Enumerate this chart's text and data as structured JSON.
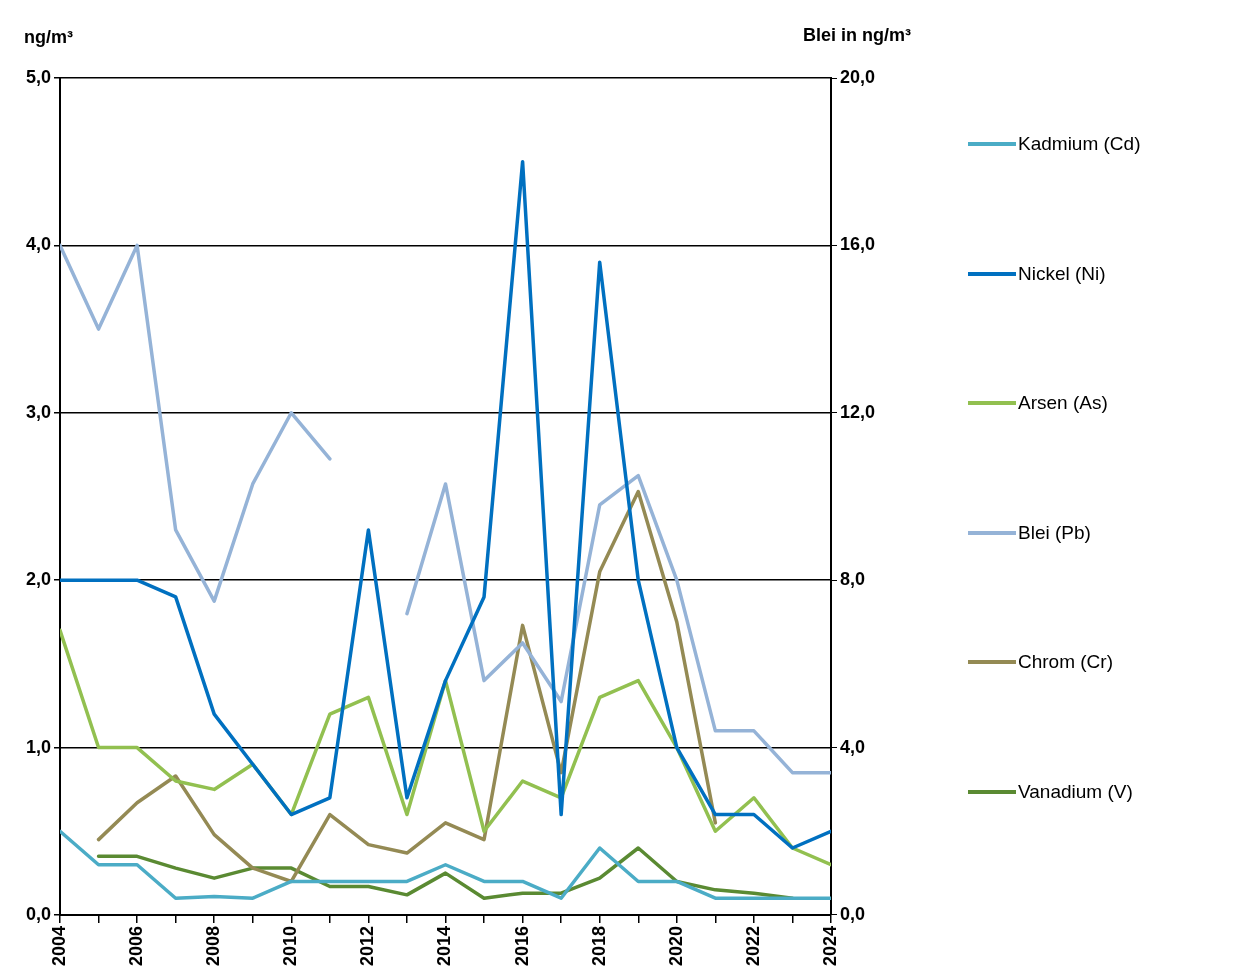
{
  "chart_data": {
    "type": "line",
    "ylabel": "ng/m³",
    "y2label": "Blei in ng/m³",
    "x": [
      2004,
      2005,
      2006,
      2007,
      2008,
      2009,
      2010,
      2011,
      2012,
      2013,
      2014,
      2015,
      2016,
      2017,
      2018,
      2019,
      2020,
      2021,
      2022,
      2023,
      2024
    ],
    "xlim": [
      2004,
      2024
    ],
    "xticks": [
      2004,
      {
        "value": 2005,
        "label": null
      },
      2006,
      {
        "value": 2007,
        "label": null
      },
      2008,
      {
        "value": 2009,
        "label": null
      },
      2010,
      {
        "value": 2011,
        "label": null
      },
      2012,
      {
        "value": 2013,
        "label": null
      },
      2014,
      {
        "value": 2015,
        "label": null
      },
      2016,
      {
        "value": 2017,
        "label": null
      },
      2018,
      {
        "value": 2019,
        "label": null
      },
      2020,
      {
        "value": 2021,
        "label": null
      },
      2022,
      {
        "value": 2023,
        "label": null
      },
      2024
    ],
    "ylim": [
      0,
      5
    ],
    "yticks": [
      {
        "value": 0,
        "label": "0,0"
      },
      {
        "value": 1,
        "label": "1,0"
      },
      {
        "value": 2,
        "label": "2,0"
      },
      {
        "value": 3,
        "label": "3,0"
      },
      {
        "value": 4,
        "label": "4,0"
      },
      {
        "value": 5,
        "label": "5,0"
      }
    ],
    "y2lim": [
      0,
      20
    ],
    "y2ticks": [
      {
        "value": 0,
        "label": "0,0"
      },
      {
        "value": 4,
        "label": "4,0"
      },
      {
        "value": 8,
        "label": "8,0"
      },
      {
        "value": 12,
        "label": "12,0"
      },
      {
        "value": 16,
        "label": "16,0"
      },
      {
        "value": 20,
        "label": "20,0"
      }
    ],
    "grid": "y",
    "legend": "right",
    "marker": "none",
    "line_style": "solid",
    "series": [
      {
        "name": "Kadmium (Cd)",
        "color": "#4bacc6",
        "values": [
          0.5,
          0.3,
          0.3,
          0.1,
          0.11,
          0.1,
          0.2,
          0.2,
          0.2,
          0.2,
          0.3,
          0.2,
          0.2,
          0.1,
          0.4,
          0.2,
          0.2,
          0.1,
          0.1,
          0.1,
          0.1
        ]
      },
      {
        "name": "Nickel (Ni)",
        "color": "#0070c0",
        "values": [
          2.0,
          2.0,
          2.0,
          1.9,
          1.2,
          0.9,
          0.6,
          0.7,
          2.3,
          0.7,
          1.4,
          1.9,
          4.5,
          0.6,
          3.9,
          2.0,
          1.0,
          0.6,
          0.6,
          0.4,
          0.5
        ]
      },
      {
        "name": "Arsen (As)",
        "color": "#92c050",
        "values": [
          1.7,
          1.0,
          1.0,
          0.8,
          0.75,
          0.9,
          0.6,
          1.2,
          1.3,
          0.6,
          1.4,
          0.5,
          0.8,
          0.7,
          1.3,
          1.4,
          1.0,
          0.5,
          0.7,
          0.4,
          0.3
        ]
      },
      {
        "name": "Blei (Pb)",
        "color": "#95b3d7",
        "axis": "y2",
        "values": [
          16.0,
          14.0,
          16.0,
          9.2,
          7.5,
          10.3,
          12.0,
          10.9,
          null,
          7.2,
          10.3,
          5.6,
          6.5,
          5.1,
          9.8,
          10.5,
          8.0,
          4.4,
          4.4,
          3.4,
          3.4
        ]
      },
      {
        "name": "Chrom (Cr)",
        "color": "#948a54",
        "values": [
          null,
          0.45,
          0.67,
          0.83,
          0.48,
          0.28,
          0.2,
          0.6,
          0.42,
          0.37,
          0.55,
          0.45,
          1.73,
          0.85,
          2.05,
          2.53,
          1.75,
          0.55,
          null,
          null,
          null
        ]
      },
      {
        "name": "Vanadium (V)",
        "color": "#5a8a32",
        "values": [
          null,
          0.35,
          0.35,
          0.28,
          0.22,
          0.28,
          0.28,
          0.17,
          0.17,
          0.12,
          0.25,
          0.1,
          0.13,
          0.13,
          0.22,
          0.4,
          0.2,
          0.15,
          0.13,
          0.1,
          null
        ]
      }
    ]
  }
}
